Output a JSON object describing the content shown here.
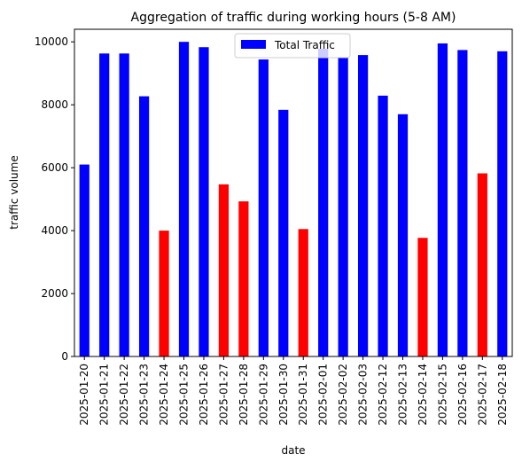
{
  "chart_data": {
    "type": "bar",
    "title": "Aggregation of traffic during working hours (5-8 AM)",
    "xlabel": "date",
    "ylabel": "traffic volume",
    "ylim": [
      0,
      10400
    ],
    "yticks": [
      0,
      2000,
      4000,
      6000,
      8000,
      10000
    ],
    "grid": false,
    "legend_position": "upper center",
    "colors": {
      "normal": "#0000ff",
      "highlight": "#ff0000"
    },
    "series": [
      {
        "name": "Total Traffic",
        "color": "#0000ff"
      }
    ],
    "categories": [
      "2025-01-20",
      "2025-01-21",
      "2025-01-22",
      "2025-01-23",
      "2025-01-24",
      "2025-01-25",
      "2025-01-26",
      "2025-01-27",
      "2025-01-28",
      "2025-01-29",
      "2025-01-30",
      "2025-01-31",
      "2025-02-01",
      "2025-02-02",
      "2025-02-03",
      "2025-02-12",
      "2025-02-13",
      "2025-02-14",
      "2025-02-15",
      "2025-02-16",
      "2025-02-17",
      "2025-02-18"
    ],
    "values": [
      6100,
      9630,
      9630,
      8270,
      4000,
      10000,
      9830,
      5470,
      4930,
      9440,
      7840,
      4050,
      9780,
      9510,
      9580,
      8290,
      7700,
      3770,
      9950,
      9740,
      5820,
      9700
    ],
    "highlighted": [
      false,
      false,
      false,
      false,
      true,
      false,
      false,
      true,
      true,
      false,
      false,
      true,
      false,
      false,
      false,
      false,
      false,
      true,
      false,
      false,
      true,
      false
    ]
  }
}
